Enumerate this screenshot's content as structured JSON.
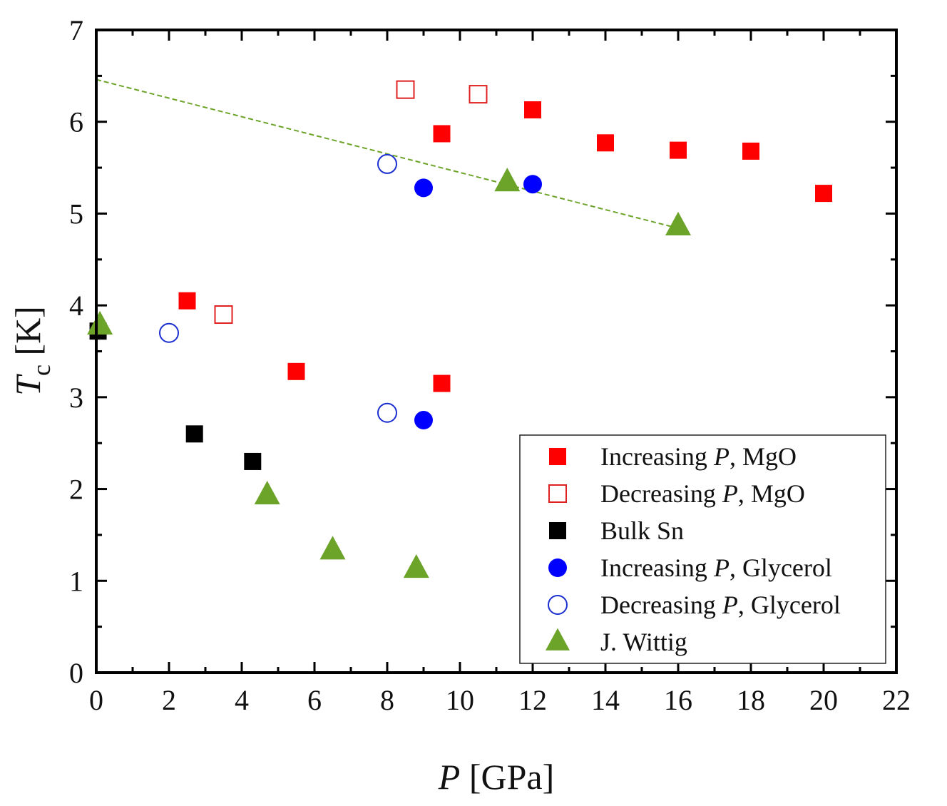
{
  "chart_data": {
    "type": "scatter",
    "title": "",
    "xlabel": {
      "italic": "P",
      "rest": " [GPa]"
    },
    "ylabel": {
      "italic": "T",
      "sub": "c",
      "rest": " [K]"
    },
    "xlim": [
      0,
      22
    ],
    "ylim": [
      0,
      7
    ],
    "x_ticks": [
      0,
      2,
      4,
      6,
      8,
      10,
      12,
      14,
      16,
      18,
      20,
      22
    ],
    "y_ticks": [
      0,
      1,
      2,
      3,
      4,
      5,
      6,
      7
    ],
    "legend_position": "bottom-right",
    "series": [
      {
        "name": "Increasing P, MgO",
        "legend_parts": [
          "Increasing ",
          "P",
          ", MgO"
        ],
        "marker": "square",
        "filled": true,
        "color": "#ff0000",
        "points": [
          [
            2.5,
            4.05
          ],
          [
            5.5,
            3.28
          ],
          [
            9.5,
            3.15
          ],
          [
            9.5,
            5.87
          ],
          [
            12,
            6.13
          ],
          [
            14,
            5.77
          ],
          [
            16,
            5.69
          ],
          [
            18,
            5.68
          ],
          [
            20,
            5.22
          ]
        ]
      },
      {
        "name": "Decreasing P, MgO",
        "legend_parts": [
          "Decreasing ",
          "P",
          ", MgO"
        ],
        "marker": "square",
        "filled": false,
        "color": "#e02020",
        "points": [
          [
            3.5,
            3.9
          ],
          [
            8.5,
            6.35
          ],
          [
            10.5,
            6.3
          ]
        ]
      },
      {
        "name": "Bulk Sn",
        "legend_parts": [
          "Bulk Sn",
          "",
          ""
        ],
        "marker": "square",
        "filled": true,
        "color": "#000000",
        "points": [
          [
            0.05,
            3.72
          ],
          [
            2.7,
            2.6
          ],
          [
            4.3,
            2.3
          ]
        ]
      },
      {
        "name": "Increasing P, Glycerol",
        "legend_parts": [
          "Increasing ",
          "P",
          ", Glycerol"
        ],
        "marker": "circle",
        "filled": true,
        "color": "#0000ff",
        "points": [
          [
            9,
            5.28
          ],
          [
            12,
            5.32
          ],
          [
            9,
            2.75
          ]
        ]
      },
      {
        "name": "Decreasing P, Glycerol",
        "legend_parts": [
          "Decreasing ",
          "P",
          ", Glycerol"
        ],
        "marker": "circle",
        "filled": false,
        "color": "#1c2fd0",
        "points": [
          [
            2,
            3.7
          ],
          [
            8,
            5.54
          ],
          [
            8,
            2.83
          ]
        ]
      },
      {
        "name": "J. Wittig",
        "legend_parts": [
          " J. Wittig",
          "",
          ""
        ],
        "marker": "triangle",
        "filled": true,
        "color": "#6ca329",
        "points": [
          [
            0.1,
            3.78
          ],
          [
            4.7,
            1.93
          ],
          [
            6.5,
            1.33
          ],
          [
            8.8,
            1.13
          ],
          [
            11.3,
            5.34
          ],
          [
            16,
            4.86
          ]
        ]
      }
    ],
    "trend_line": {
      "name": "linear-fit",
      "color": "#6ca329",
      "style": "dashed",
      "points": [
        [
          0,
          6.46
        ],
        [
          16,
          4.84
        ]
      ]
    }
  }
}
